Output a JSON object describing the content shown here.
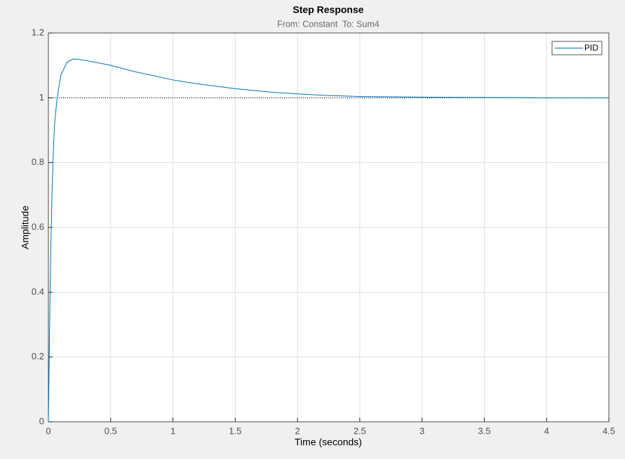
{
  "chart_data": {
    "type": "line",
    "title": "Step Response",
    "subtitle": "From: Constant  To: Sum4",
    "x_label": "Time (seconds)",
    "y_label": "Amplitude",
    "x": [
      0,
      0.01,
      0.02,
      0.03,
      0.04,
      0.05,
      0.07,
      0.1,
      0.15,
      0.2,
      0.25,
      0.3,
      0.4,
      0.5,
      0.7,
      1.0,
      1.2,
      1.5,
      1.8,
      2.0,
      2.25,
      2.5,
      3.0,
      3.5,
      4.0,
      4.5
    ],
    "series": [
      {
        "name": "PID",
        "color": "#0072bd",
        "values": [
          0,
          0.3,
          0.55,
          0.72,
          0.84,
          0.92,
          1.0,
          1.07,
          1.11,
          1.12,
          1.118,
          1.115,
          1.108,
          1.1,
          1.08,
          1.055,
          1.043,
          1.028,
          1.017,
          1.012,
          1.007,
          1.004,
          1.002,
          1.001,
          1.0,
          1.0
        ]
      }
    ],
    "hline": 1,
    "xlim": [
      0,
      4.5
    ],
    "xticks": [
      0,
      0.5,
      1,
      1.5,
      2,
      2.5,
      3,
      3.5,
      4,
      4.5
    ],
    "ylim": [
      0,
      1.2
    ],
    "yticks": [
      0,
      0.2,
      0.4,
      0.6,
      0.8,
      1,
      1.2
    ],
    "grid": true,
    "legend": "top-right"
  }
}
